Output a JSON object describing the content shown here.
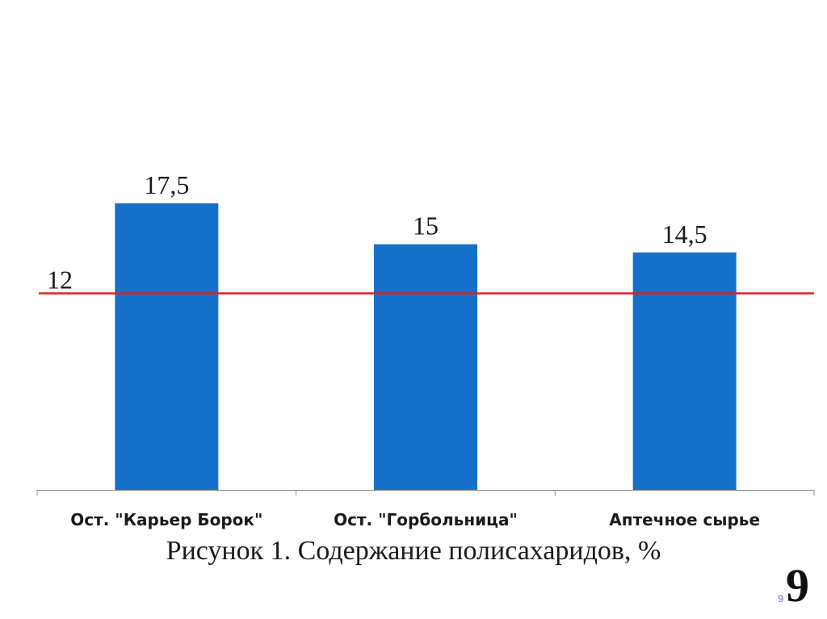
{
  "chart_data": {
    "type": "bar",
    "categories": [
      "Ост. \"Карьер Борок\"",
      "Ост. \"Горбольница\"",
      "Аптечное сырье"
    ],
    "values": [
      17.5,
      15,
      14.5
    ],
    "value_labels": [
      "17,5",
      "15",
      "14,5"
    ],
    "reference_line": {
      "value": 12,
      "label": "12",
      "color": "#e02020"
    },
    "ylim": [
      0,
      24
    ],
    "grid": false,
    "bar_color": "#1570c9",
    "title": "",
    "xlabel": "",
    "ylabel": ""
  },
  "caption": "Рисунок 1. Содержание полисахаридов, %",
  "slide_number": "9",
  "slide_number_small": "9"
}
